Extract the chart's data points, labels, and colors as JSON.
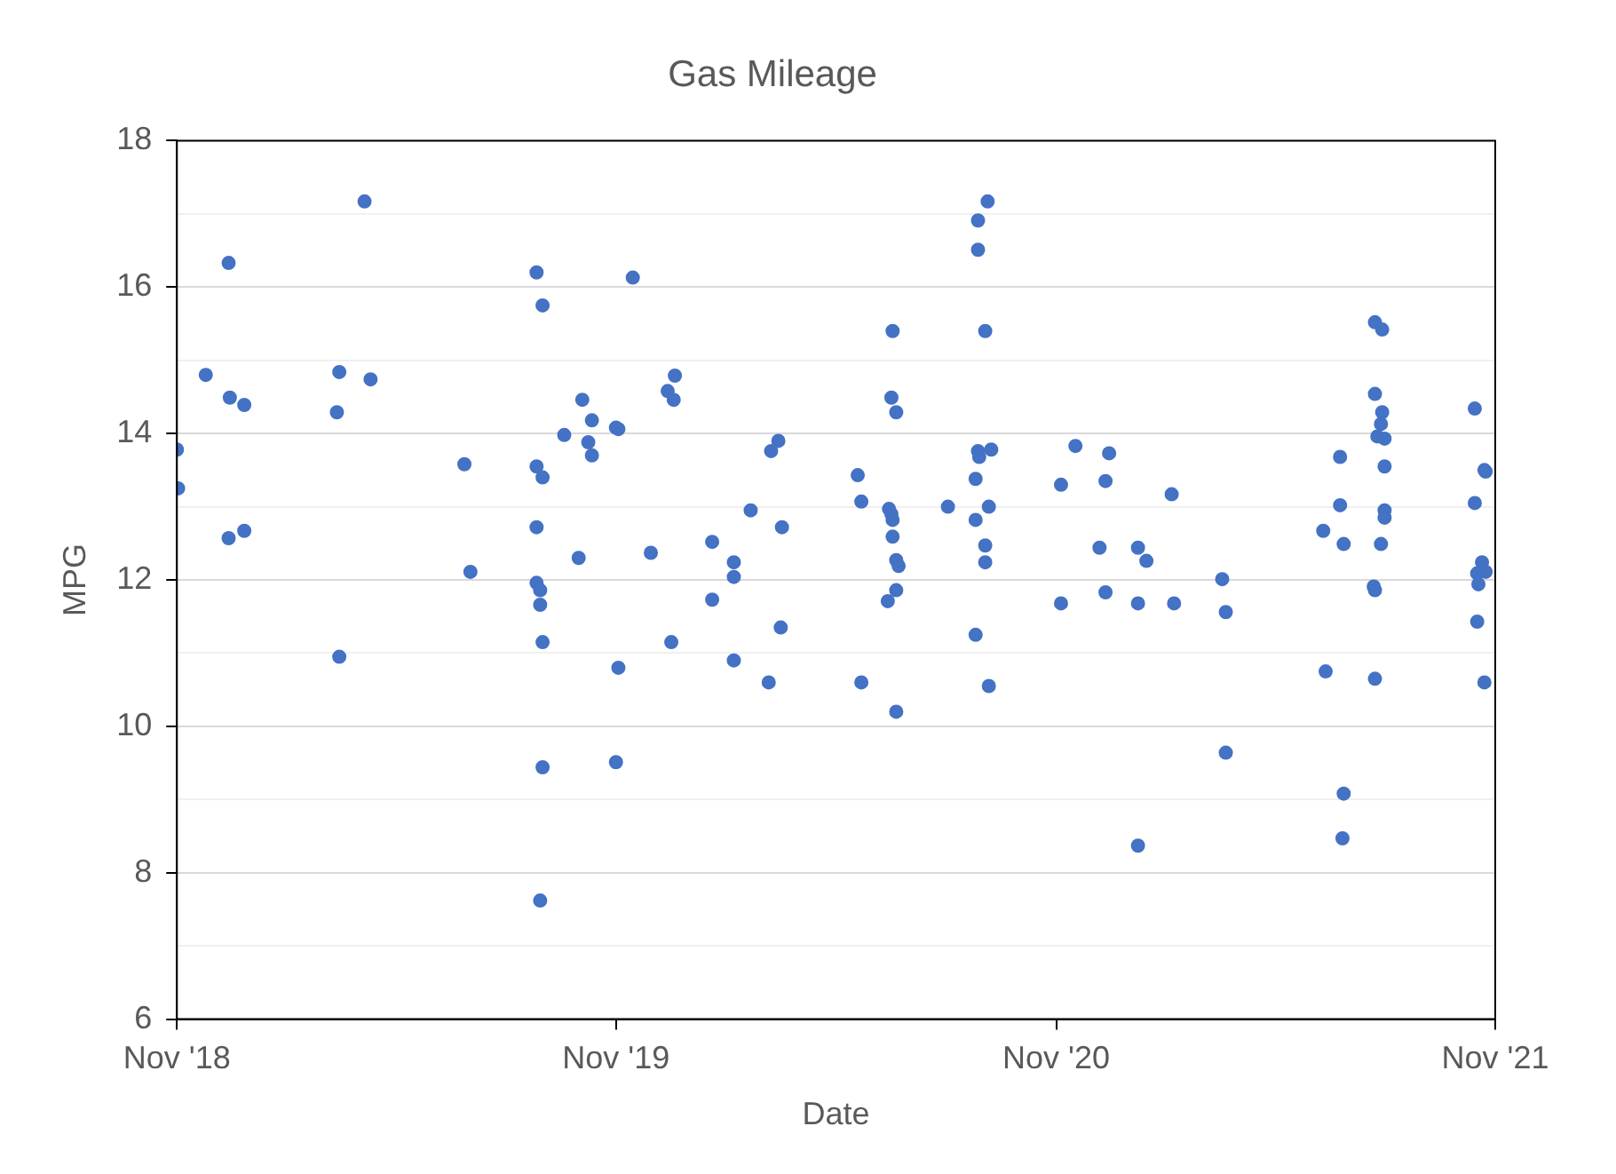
{
  "chart_data": {
    "type": "scatter",
    "title": "Gas Mileage",
    "xlabel": "Date",
    "ylabel": "MPG",
    "x": [
      "2018-11-01",
      "2018-11-02",
      "2018-11-25",
      "2018-12-14",
      "2018-12-15",
      "2018-12-27",
      "2018-12-14",
      "2018-12-27",
      "2019-03-16",
      "2019-03-14",
      "2019-03-16",
      "2019-04-06",
      "2019-04-11",
      "2019-06-28",
      "2019-07-03",
      "2019-08-27",
      "2019-09-01",
      "2019-08-27",
      "2019-09-01",
      "2019-08-27",
      "2019-08-27",
      "2019-08-30",
      "2019-08-30",
      "2019-09-01",
      "2019-09-01",
      "2019-08-30",
      "2019-09-19",
      "2019-10-01",
      "2019-10-04",
      "2019-10-12",
      "2019-10-09",
      "2019-10-12",
      "2019-11-01",
      "2019-11-03",
      "2019-11-03",
      "2019-11-01",
      "2019-11-15",
      "2019-11-30",
      "2019-12-14",
      "2019-12-20",
      "2019-12-19",
      "2019-12-17",
      "2020-01-20",
      "2020-01-20",
      "2020-02-07",
      "2020-02-07",
      "2020-02-07",
      "2020-02-21",
      "2020-03-09",
      "2020-03-15",
      "2020-03-18",
      "2020-03-17",
      "2020-03-07",
      "2020-05-20",
      "2020-05-23",
      "2020-05-23",
      "2020-06-17",
      "2020-06-21",
      "2020-06-18",
      "2020-06-15",
      "2020-06-18",
      "2020-06-18",
      "2020-06-17",
      "2020-06-21",
      "2020-06-23",
      "2020-06-21",
      "2020-06-14",
      "2020-06-21",
      "2020-08-03",
      "2020-08-28",
      "2020-08-28",
      "2020-09-05",
      "2020-09-03",
      "2020-08-28",
      "2020-08-29",
      "2020-09-08",
      "2020-08-26",
      "2020-09-06",
      "2020-08-26",
      "2020-09-03",
      "2020-09-03",
      "2020-08-26",
      "2020-09-06",
      "2020-11-05",
      "2020-11-05",
      "2020-11-17",
      "2020-12-15",
      "2020-12-12",
      "2020-12-07",
      "2020-12-12",
      "2021-01-08",
      "2021-01-15",
      "2021-01-08",
      "2021-01-08",
      "2021-02-05",
      "2021-02-07",
      "2021-03-19",
      "2021-03-22",
      "2021-03-22",
      "2021-06-13",
      "2021-06-11",
      "2021-06-25",
      "2021-06-25",
      "2021-06-28",
      "2021-06-28",
      "2021-06-27",
      "2021-07-24",
      "2021-07-30",
      "2021-07-24",
      "2021-07-30",
      "2021-07-29",
      "2021-07-26",
      "2021-08-01",
      "2021-08-01",
      "2021-08-01",
      "2021-08-01",
      "2021-07-29",
      "2021-07-23",
      "2021-07-24",
      "2021-07-24",
      "2021-10-15",
      "2021-10-23",
      "2021-10-24",
      "2021-10-15",
      "2021-10-21",
      "2021-10-17",
      "2021-10-24",
      "2021-10-18",
      "2021-10-17",
      "2021-10-23"
    ],
    "values": [
      13.78,
      13.25,
      14.8,
      16.33,
      14.49,
      14.39,
      12.57,
      12.67,
      14.84,
      14.29,
      10.95,
      17.17,
      14.74,
      13.58,
      12.11,
      16.2,
      15.75,
      13.55,
      13.4,
      12.72,
      11.96,
      11.86,
      11.66,
      11.15,
      9.44,
      7.62,
      13.98,
      12.3,
      14.46,
      14.18,
      13.88,
      13.7,
      14.08,
      14.06,
      10.8,
      9.51,
      16.13,
      12.37,
      14.58,
      14.79,
      14.46,
      11.15,
      12.52,
      11.73,
      12.24,
      12.04,
      10.9,
      12.95,
      13.76,
      13.9,
      12.72,
      11.35,
      10.6,
      13.43,
      13.07,
      10.6,
      14.49,
      14.29,
      15.4,
      12.97,
      12.82,
      12.59,
      12.9,
      12.27,
      12.19,
      11.86,
      11.71,
      10.2,
      13.0,
      16.91,
      16.51,
      17.17,
      15.4,
      13.76,
      13.68,
      13.78,
      13.38,
      13.0,
      12.82,
      12.47,
      12.24,
      11.25,
      10.55,
      13.3,
      11.68,
      13.83,
      13.73,
      13.35,
      12.44,
      11.83,
      12.44,
      12.26,
      11.68,
      8.37,
      13.17,
      11.68,
      12.01,
      11.56,
      9.64,
      10.75,
      12.67,
      13.68,
      13.02,
      12.49,
      9.08,
      8.47,
      15.52,
      15.42,
      14.54,
      14.29,
      14.13,
      13.96,
      13.93,
      13.55,
      12.95,
      12.85,
      12.49,
      11.91,
      11.86,
      10.65,
      14.34,
      13.5,
      13.48,
      13.05,
      12.24,
      12.09,
      12.11,
      11.94,
      11.43,
      10.6
    ],
    "color": "#4472c4",
    "marker": "circle",
    "xlim": [
      "2018-11-01",
      "2021-11-01"
    ],
    "xticks": [
      {
        "value": "2018-11-01",
        "label": "Nov '18"
      },
      {
        "value": "2019-11-01",
        "label": "Nov '19"
      },
      {
        "value": "2020-11-01",
        "label": "Nov '20"
      },
      {
        "value": "2021-11-01",
        "label": "Nov '21"
      }
    ],
    "ylim": [
      6,
      18
    ],
    "yticks": [
      6,
      {
        "value": 7,
        "label": null
      },
      8,
      {
        "value": 9,
        "label": null
      },
      10,
      {
        "value": 11,
        "label": null
      },
      12,
      {
        "value": 13,
        "label": null
      },
      14,
      {
        "value": 15,
        "label": null
      },
      16,
      {
        "value": 17,
        "label": null
      },
      18
    ],
    "grid": "y"
  }
}
